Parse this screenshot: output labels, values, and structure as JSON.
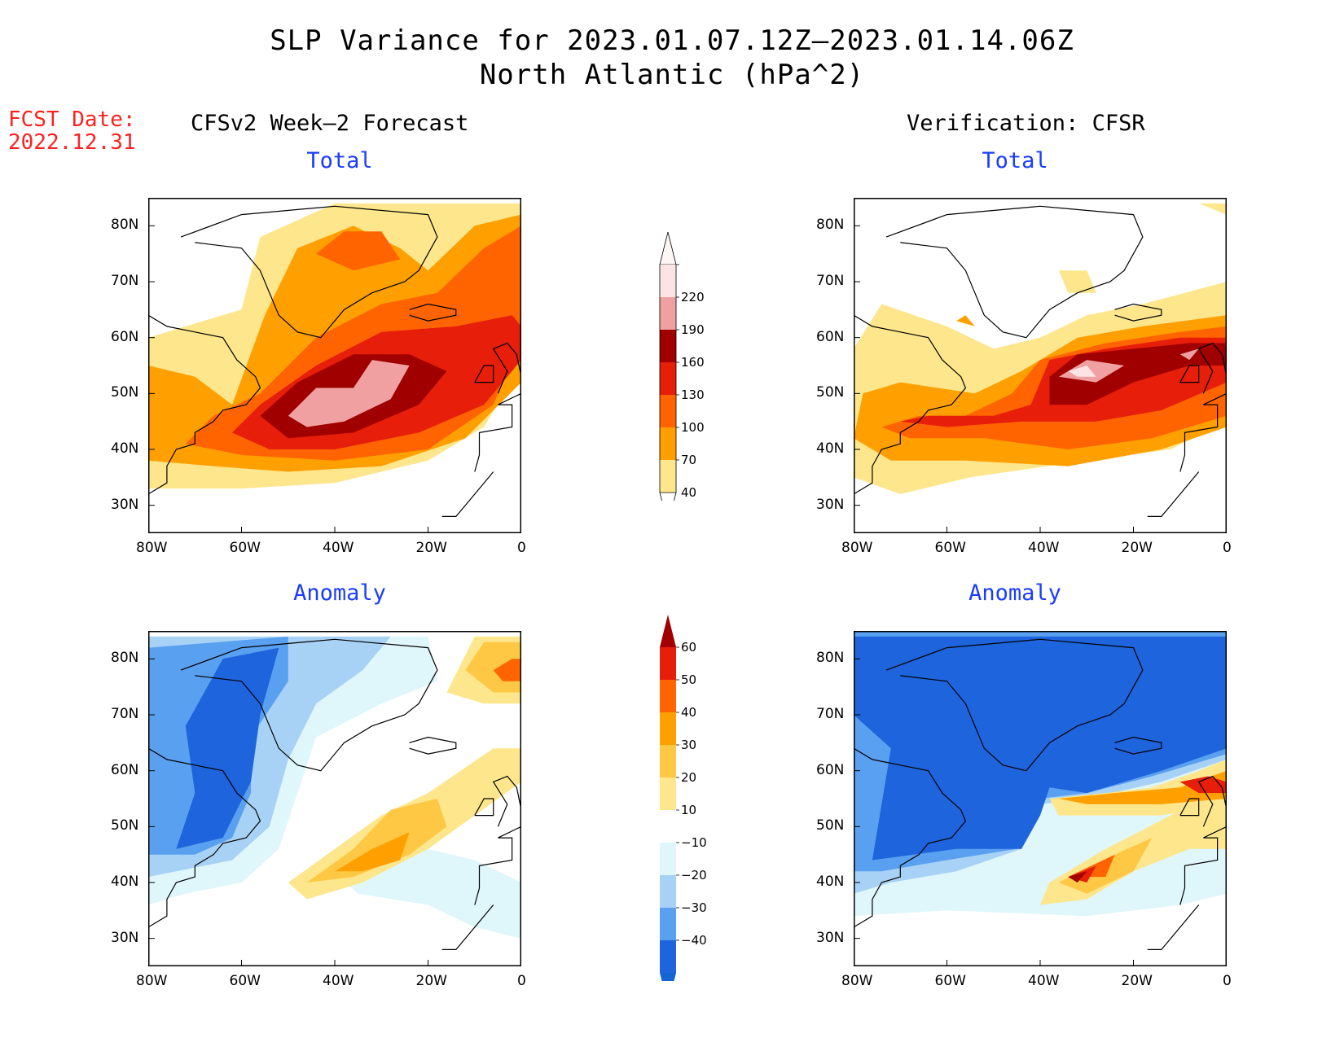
{
  "title": {
    "line1": "SLP Variance for 2023.01.07.12Z–2023.01.14.06Z",
    "line2": "North Atlantic (hPa^2)"
  },
  "forecast_date": {
    "label": "FCST Date:",
    "value": "2022.12.31"
  },
  "columns": {
    "left": "CFSv2 Week–2 Forecast",
    "right": "Verification: CFSR"
  },
  "panel_titles": {
    "total": "Total",
    "anomaly": "Anomaly"
  },
  "axes": {
    "lat_ticks": [
      "80N",
      "70N",
      "60N",
      "50N",
      "40N",
      "30N"
    ],
    "lon_ticks": [
      "80W",
      "60W",
      "40W",
      "20W",
      "0"
    ],
    "lon_range": [
      -80,
      0
    ],
    "lat_range": [
      25,
      85
    ]
  },
  "colorbars": {
    "total": {
      "levels": [
        "40",
        "70",
        "100",
        "130",
        "160",
        "190",
        "220"
      ],
      "colors": [
        "#fee68c",
        "#ffa000",
        "#ff6400",
        "#e61e0a",
        "#a00000",
        "#f0a0a0",
        "#fde4e4"
      ]
    },
    "anomaly": {
      "levels": [
        "60",
        "50",
        "40",
        "30",
        "20",
        "10",
        "−10",
        "−20",
        "−30",
        "−40"
      ],
      "colors": [
        "#a00000",
        "#e61e0a",
        "#ff6400",
        "#ffa000",
        "#ffc844",
        "#fee68c",
        "#ffffff",
        "#dff6fb",
        "#a8d2f5",
        "#5aa0f0",
        "#1e64dc",
        "#1464d2"
      ]
    }
  },
  "chart_data": [
    {
      "type": "heatmap",
      "title": "Total",
      "column": "CFSv2 Week–2 Forecast",
      "features": [
        {
          "level": 40,
          "center": [
            -35,
            55
          ]
        },
        {
          "level": 100,
          "center": [
            -32,
            50
          ]
        },
        {
          "level": 190,
          "center": [
            -34,
            49
          ]
        }
      ]
    },
    {
      "type": "heatmap",
      "title": "Total",
      "column": "Verification: CFSR",
      "features": [
        {
          "level": 40,
          "center": [
            -30,
            52
          ]
        },
        {
          "level": 130,
          "center": [
            -28,
            52
          ]
        },
        {
          "level": 190,
          "center": [
            -30,
            54
          ]
        }
      ]
    },
    {
      "type": "heatmap",
      "title": "Anomaly",
      "column": "CFSv2 Week–2 Forecast",
      "features": [
        {
          "level": -30,
          "center": [
            -60,
            60
          ]
        },
        {
          "level": 30,
          "center": [
            -32,
            48
          ]
        },
        {
          "level": 40,
          "center": [
            -5,
            78
          ]
        }
      ]
    },
    {
      "type": "heatmap",
      "title": "Anomaly",
      "column": "Verification: CFSR",
      "features": [
        {
          "level": -40,
          "center": [
            -50,
            65
          ]
        },
        {
          "level": 50,
          "center": [
            -30,
            42
          ]
        },
        {
          "level": 50,
          "center": [
            -10,
            56
          ]
        }
      ]
    }
  ]
}
